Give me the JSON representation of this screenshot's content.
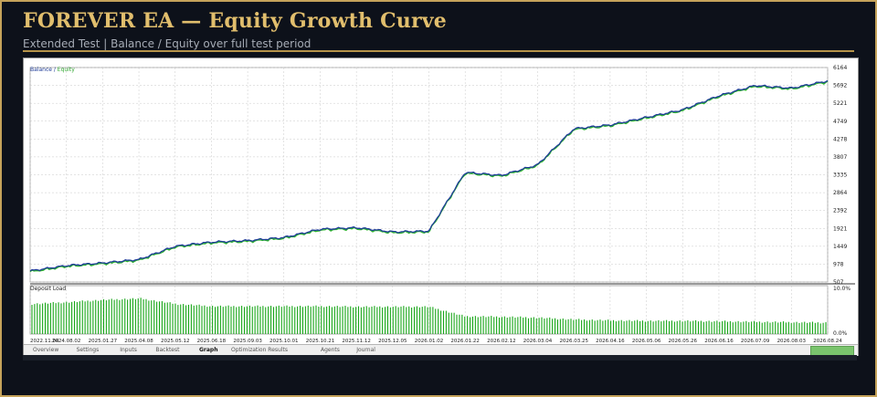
{
  "header": {
    "title": "FOREVER EA — Equity Growth Curve",
    "subtitle": "Extended Test | Balance / Equity over full test period"
  },
  "chart_data": {
    "type": "line",
    "legend": {
      "balance_label": "Balance",
      "separator": " / ",
      "equity_label": "Equity"
    },
    "colors": {
      "balance": "#1f3c99",
      "equity": "#2fb52f",
      "deposit_load": "#16a516",
      "grid": "#c9c9c9"
    },
    "y_ticks": [
      6164,
      5692,
      5221,
      4749,
      4278,
      3807,
      3335,
      2864,
      2392,
      1921,
      1449,
      978,
      507
    ],
    "ylim": [
      507,
      6164
    ],
    "x_ticks": [
      "2022.11.04",
      "2024.08.02",
      "2025.01.27",
      "2025.04.08",
      "2025.05.12",
      "2025.06.18",
      "2025.09.03",
      "2025.10.01",
      "2025.10.21",
      "2025.11.12",
      "2025.12.05",
      "2026.01.02",
      "2026.01.22",
      "2026.02.12",
      "2026.03.04",
      "2026.03.25",
      "2026.04.16",
      "2026.05.06",
      "2026.05.26",
      "2026.06.16",
      "2026.07.09",
      "2026.08.03",
      "2026.08.24"
    ],
    "series": [
      {
        "name": "Balance",
        "x": [
          0,
          1,
          2,
          3,
          4,
          5,
          6,
          7,
          8,
          9,
          10,
          11,
          12,
          13,
          14,
          15,
          16,
          17,
          18,
          19,
          20,
          21,
          22
        ],
        "y": [
          800,
          940,
          1010,
          1100,
          1450,
          1560,
          1600,
          1680,
          1900,
          1940,
          1830,
          1850,
          3400,
          3320,
          3600,
          4550,
          4650,
          4850,
          5050,
          5420,
          5690,
          5620,
          5810
        ]
      }
    ],
    "deposit_load": {
      "label": "Deposit Load",
      "axis_labels": [
        "10.0%",
        "0.0%"
      ],
      "ylim": [
        0,
        10
      ],
      "x": [
        0,
        1,
        2,
        3,
        4,
        5,
        6,
        7,
        8,
        9,
        10,
        11,
        12,
        13,
        14,
        15,
        16,
        17,
        18,
        19,
        20,
        21,
        22
      ],
      "y": [
        6.6,
        7.0,
        7.5,
        7.8,
        6.6,
        6.1,
        6.1,
        6.1,
        6.1,
        6.0,
        6.0,
        6.0,
        3.9,
        3.8,
        3.6,
        3.2,
        3.0,
        2.9,
        2.9,
        2.8,
        2.7,
        2.6,
        2.5
      ]
    }
  },
  "tabs": {
    "items": [
      "Overview",
      "Settings",
      "Inputs",
      "Backtest",
      "Graph",
      "Optimization Results",
      "Agents",
      "Journal"
    ],
    "active": "Graph"
  }
}
